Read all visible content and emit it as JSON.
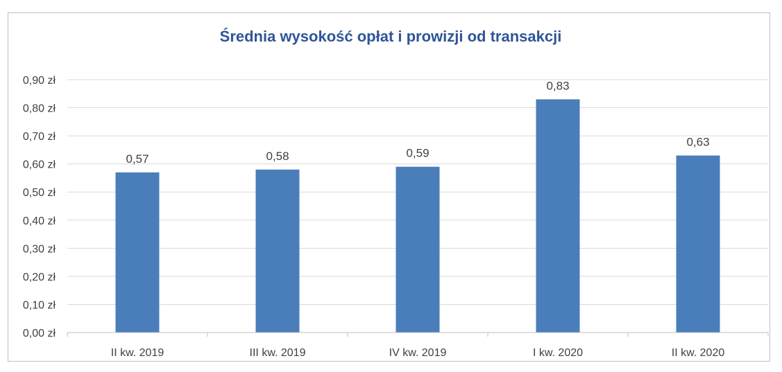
{
  "chart_data": {
    "type": "bar",
    "title": "Średnia wysokość opłat i prowizji od transakcji",
    "categories": [
      "II kw. 2019",
      "III kw. 2019",
      "IV kw. 2019",
      "I kw. 2020",
      "II kw. 2020"
    ],
    "values": [
      0.57,
      0.58,
      0.59,
      0.83,
      0.63
    ],
    "data_labels": [
      "0,57",
      "0,58",
      "0,59",
      "0,83",
      "0,63"
    ],
    "yticks": [
      0,
      0.1,
      0.2,
      0.3,
      0.4,
      0.5,
      0.6,
      0.7,
      0.8,
      0.9
    ],
    "ytick_labels": [
      "0,00 zł",
      "0,10 zł",
      "0,20 zł",
      "0,30 zł",
      "0,40 zł",
      "0,50 zł",
      "0,60 zł",
      "0,70 zł",
      "0,80 zł",
      "0,90 zł"
    ],
    "ylim": [
      0,
      0.9
    ],
    "grid": true,
    "legend": "none",
    "bar_color": "#4a7ebb",
    "grid_color": "#d9d9d9",
    "title_color": "#2f5597"
  }
}
